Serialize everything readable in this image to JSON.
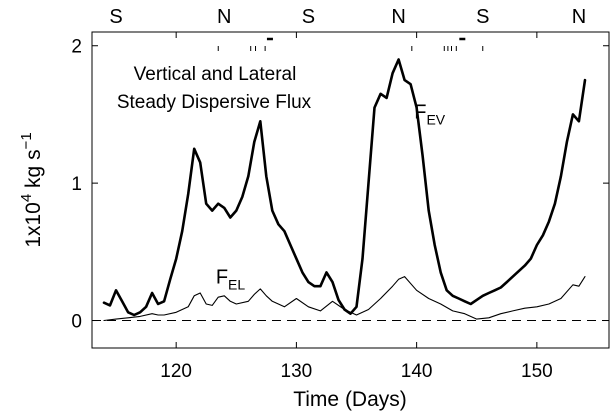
{
  "chart_data": {
    "type": "line",
    "title_lines": [
      "Vertical and Lateral",
      "Steady Dispersive Flux"
    ],
    "xlabel": "Time (Days)",
    "ylabel": {
      "base": "1x10",
      "exp": "4",
      "unit": " kg  s",
      "unit_exp": "−1"
    },
    "xlim": [
      113,
      156
    ],
    "ylim": [
      -0.2,
      2.1
    ],
    "xticks": [
      120,
      130,
      140,
      150
    ],
    "yticks": [
      0,
      1,
      2
    ],
    "tide_labels": [
      {
        "x": 115,
        "text": "S"
      },
      {
        "x": 124,
        "text": "N"
      },
      {
        "x": 131,
        "text": "S"
      },
      {
        "x": 138.5,
        "text": "N"
      },
      {
        "x": 145.5,
        "text": "S"
      },
      {
        "x": 153.5,
        "text": "N"
      }
    ],
    "series": [
      {
        "name": "F_EV",
        "label_main": "F",
        "label_sub": "EV",
        "label_at": {
          "x": 139.8,
          "y": 1.47
        },
        "stroke": "#000000",
        "width": 2.6,
        "x": [
          114.0,
          114.5,
          115.0,
          115.5,
          116.0,
          116.5,
          117.0,
          117.5,
          118.0,
          118.5,
          119.0,
          119.5,
          120.0,
          120.5,
          121.0,
          121.5,
          122.0,
          122.5,
          123.0,
          123.5,
          124.0,
          124.5,
          125.0,
          125.5,
          126.0,
          126.5,
          127.0,
          127.5,
          128.0,
          128.5,
          129.0,
          129.5,
          130.0,
          130.5,
          131.0,
          131.5,
          132.0,
          132.5,
          133.0,
          133.5,
          134.0,
          134.5,
          135.0,
          135.5,
          136.0,
          136.5,
          137.0,
          137.5,
          138.0,
          138.5,
          139.0,
          139.5,
          140.0,
          140.5,
          141.0,
          141.5,
          142.0,
          142.5,
          143.0,
          143.5,
          144.0,
          144.5,
          145.0,
          145.5,
          146.0,
          146.5,
          147.0,
          147.5,
          148.0,
          148.5,
          149.0,
          149.5,
          150.0,
          150.5,
          151.0,
          151.5,
          152.0,
          152.5,
          153.0,
          153.5,
          154.0
        ],
        "y": [
          0.13,
          0.11,
          0.22,
          0.14,
          0.06,
          0.04,
          0.06,
          0.1,
          0.2,
          0.12,
          0.14,
          0.3,
          0.45,
          0.65,
          0.92,
          1.25,
          1.15,
          0.85,
          0.8,
          0.85,
          0.82,
          0.75,
          0.8,
          0.9,
          1.05,
          1.3,
          1.45,
          1.05,
          0.8,
          0.7,
          0.65,
          0.55,
          0.45,
          0.35,
          0.28,
          0.25,
          0.25,
          0.35,
          0.28,
          0.15,
          0.08,
          0.05,
          0.1,
          0.45,
          1.0,
          1.55,
          1.65,
          1.62,
          1.8,
          1.9,
          1.75,
          1.72,
          1.55,
          1.2,
          0.8,
          0.55,
          0.35,
          0.22,
          0.18,
          0.16,
          0.14,
          0.12,
          0.15,
          0.18,
          0.2,
          0.22,
          0.24,
          0.28,
          0.32,
          0.36,
          0.4,
          0.45,
          0.55,
          0.62,
          0.72,
          0.85,
          1.05,
          1.3,
          1.5,
          1.45,
          1.75
        ]
      },
      {
        "name": "F_EL",
        "label_main": "F",
        "label_sub": "EL",
        "label_at": {
          "x": 123.3,
          "y": 0.27
        },
        "stroke": "#000000",
        "width": 1.1,
        "x": [
          114.0,
          115.0,
          116.0,
          117.0,
          118.0,
          118.5,
          119.0,
          120.0,
          121.0,
          121.5,
          122.0,
          122.5,
          123.0,
          123.5,
          124.0,
          124.5,
          125.0,
          126.0,
          126.5,
          127.0,
          127.5,
          128.0,
          129.0,
          130.0,
          131.0,
          132.0,
          133.0,
          134.0,
          135.0,
          136.0,
          137.0,
          138.0,
          138.5,
          139.0,
          140.0,
          141.0,
          142.0,
          143.0,
          144.0,
          145.0,
          146.0,
          147.0,
          148.0,
          149.0,
          150.0,
          151.0,
          152.0,
          153.0,
          153.5,
          154.0
        ],
        "y": [
          0.0,
          0.01,
          0.02,
          0.03,
          0.05,
          0.04,
          0.04,
          0.06,
          0.1,
          0.18,
          0.2,
          0.12,
          0.11,
          0.17,
          0.18,
          0.14,
          0.12,
          0.14,
          0.19,
          0.23,
          0.18,
          0.14,
          0.1,
          0.16,
          0.1,
          0.07,
          0.14,
          0.08,
          0.04,
          0.08,
          0.16,
          0.25,
          0.3,
          0.32,
          0.22,
          0.16,
          0.12,
          0.07,
          0.05,
          0.01,
          0.02,
          0.05,
          0.07,
          0.09,
          0.1,
          0.12,
          0.16,
          0.26,
          0.25,
          0.32
        ]
      }
    ],
    "zero_line": {
      "y": 0,
      "dash": "9,6"
    },
    "markers": [
      {
        "x": 123.5,
        "kind": "tick"
      },
      {
        "x": 126.2,
        "kind": "tick"
      },
      {
        "x": 126.6,
        "kind": "tick"
      },
      {
        "x": 127.4,
        "kind": "tick"
      },
      {
        "x": 127.8,
        "kind": "dash"
      },
      {
        "x": 139.6,
        "kind": "tick"
      },
      {
        "x": 142.3,
        "kind": "tick"
      },
      {
        "x": 142.6,
        "kind": "tick"
      },
      {
        "x": 142.9,
        "kind": "tick"
      },
      {
        "x": 143.3,
        "kind": "tick"
      },
      {
        "x": 143.8,
        "kind": "dash"
      },
      {
        "x": 145.5,
        "kind": "tick"
      }
    ]
  }
}
